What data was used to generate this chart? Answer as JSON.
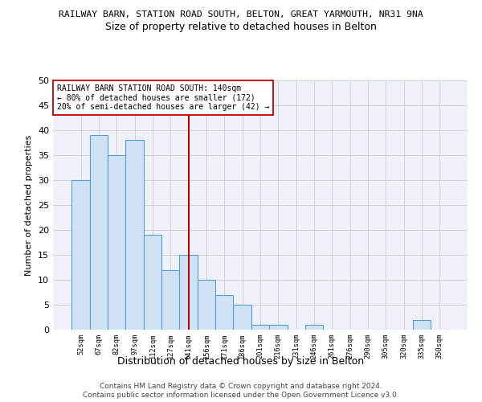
{
  "title1": "RAILWAY BARN, STATION ROAD SOUTH, BELTON, GREAT YARMOUTH, NR31 9NA",
  "title2": "Size of property relative to detached houses in Belton",
  "xlabel": "Distribution of detached houses by size in Belton",
  "ylabel": "Number of detached properties",
  "bar_labels": [
    "52sqm",
    "67sqm",
    "82sqm",
    "97sqm",
    "112sqm",
    "127sqm",
    "141sqm",
    "156sqm",
    "171sqm",
    "186sqm",
    "201sqm",
    "216sqm",
    "231sqm",
    "246sqm",
    "261sqm",
    "276sqm",
    "290sqm",
    "305sqm",
    "320sqm",
    "335sqm",
    "350sqm"
  ],
  "bar_values": [
    30,
    39,
    35,
    38,
    19,
    12,
    15,
    10,
    7,
    5,
    1,
    1,
    0,
    1,
    0,
    0,
    0,
    0,
    0,
    2,
    0
  ],
  "bar_color": "#cfe2f3",
  "bar_edge_color": "#5b9bd5",
  "reference_line_x": 6,
  "reference_line_color": "#c00000",
  "annotation_text": "RAILWAY BARN STATION ROAD SOUTH: 140sqm\n← 80% of detached houses are smaller (172)\n20% of semi-detached houses are larger (42) →",
  "annotation_box_color": "#ffffff",
  "annotation_box_edge_color": "#c00000",
  "ylim": [
    0,
    50
  ],
  "yticks": [
    0,
    5,
    10,
    15,
    20,
    25,
    30,
    35,
    40,
    45,
    50
  ],
  "grid_color": "#cccccc",
  "bg_color": "#eef2f8",
  "footer1": "Contains HM Land Registry data © Crown copyright and database right 2024.",
  "footer2": "Contains public sector information licensed under the Open Government Licence v3.0."
}
